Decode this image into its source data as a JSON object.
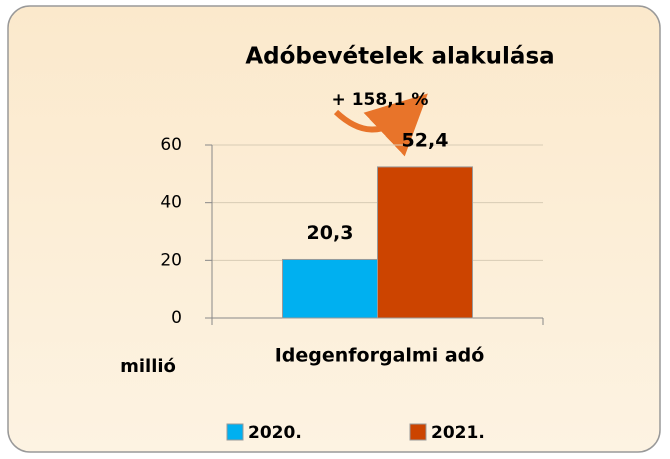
{
  "chart_data": {
    "type": "bar",
    "title": "Adóbevételek alakulása",
    "annotation": "+ 158,1 %",
    "ylabel": "millió",
    "categories": [
      "Idegenforgalmi adó"
    ],
    "series": [
      {
        "name": "2020.",
        "color": "#00b0f0",
        "values": [
          20.3
        ],
        "value_labels": [
          "20,3"
        ]
      },
      {
        "name": "2021.",
        "color": "#cc4400",
        "values": [
          52.4
        ],
        "value_labels": [
          "52,4"
        ]
      }
    ],
    "ylim": [
      0,
      60
    ],
    "yticks": [
      0,
      20,
      40,
      60
    ],
    "grid": true,
    "legend": "bottom"
  }
}
